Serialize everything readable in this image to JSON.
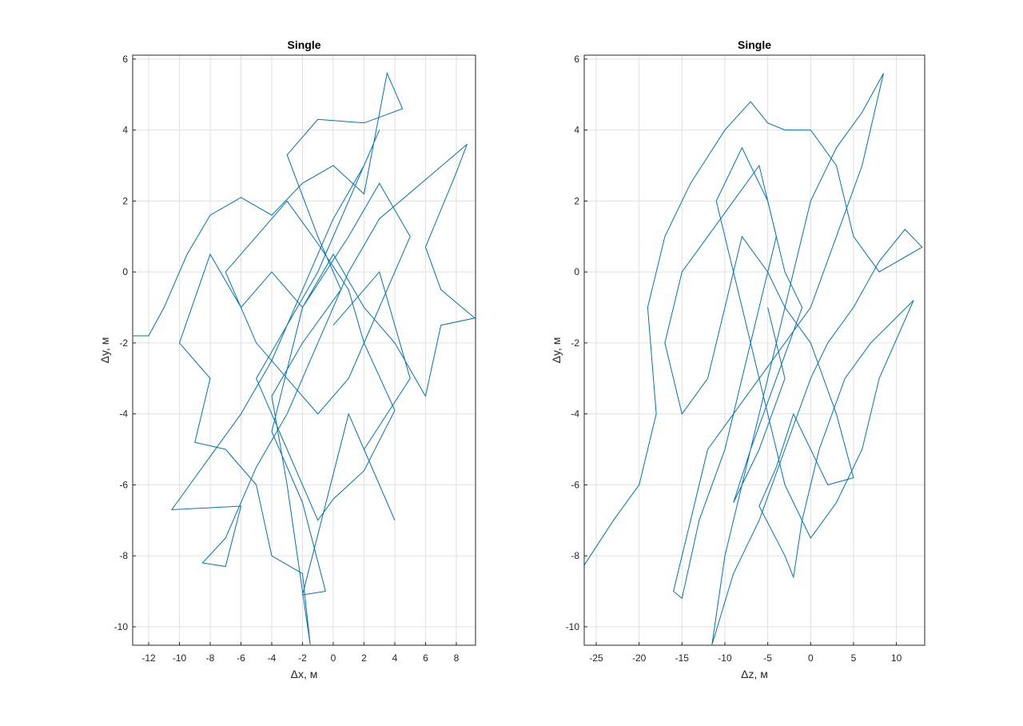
{
  "chart_data": [
    {
      "type": "line",
      "title": "Single",
      "xlabel": "Δx, м",
      "ylabel": "Δy, м",
      "xlim": [
        -13.04,
        9.25
      ],
      "ylim": [
        -10.52,
        6.11
      ],
      "xticks": [
        -12,
        -10,
        -8,
        -6,
        -4,
        -2,
        0,
        2,
        4,
        6,
        8
      ],
      "yticks": [
        -10,
        -8,
        -6,
        -4,
        -2,
        0,
        2,
        4,
        6
      ],
      "grid": true,
      "color": "#0072BD",
      "points": [
        [
          -13,
          -1.8
        ],
        [
          -12,
          -1.8
        ],
        [
          -11,
          -1
        ],
        [
          -9.5,
          0.5
        ],
        [
          -8,
          1.6
        ],
        [
          -6,
          2.1
        ],
        [
          -4,
          1.6
        ],
        [
          -2,
          2.5
        ],
        [
          0,
          3
        ],
        [
          2,
          2.2
        ],
        [
          3.5,
          5.6
        ],
        [
          4.5,
          4.6
        ],
        [
          2,
          4.2
        ],
        [
          -1,
          4.3
        ],
        [
          -3,
          3.3
        ],
        [
          -1,
          1
        ],
        [
          0.5,
          -0.5
        ],
        [
          -2,
          -2
        ],
        [
          -4,
          -3.5
        ],
        [
          -3,
          -6
        ],
        [
          -1.5,
          -10.5
        ],
        [
          -2,
          -8.5
        ],
        [
          -4,
          -8
        ],
        [
          -5,
          -6
        ],
        [
          -7,
          -5
        ],
        [
          -9,
          -4.8
        ],
        [
          -8,
          -3
        ],
        [
          -10,
          -2
        ],
        [
          -8,
          0.5
        ],
        [
          -6,
          -1
        ],
        [
          -4,
          0
        ],
        [
          -2,
          -1
        ],
        [
          0,
          0.5
        ],
        [
          2,
          -1
        ],
        [
          4,
          -2
        ],
        [
          6,
          -3.5
        ],
        [
          7,
          -1.5
        ],
        [
          9.2,
          -1.3
        ],
        [
          7,
          -0.5
        ],
        [
          6,
          0.7
        ],
        [
          8,
          2.8
        ],
        [
          8.7,
          3.6
        ],
        [
          6,
          2.6
        ],
        [
          3,
          1.5
        ],
        [
          1,
          0
        ],
        [
          -1,
          -2
        ],
        [
          -3,
          -4
        ],
        [
          -5,
          -5.5
        ],
        [
          -7,
          -7.5
        ],
        [
          -8.5,
          -8.2
        ],
        [
          -7,
          -8.3
        ],
        [
          -6,
          -6.6
        ],
        [
          -10.5,
          -6.7
        ],
        [
          -9,
          -5.8
        ],
        [
          -6,
          -4
        ],
        [
          -4,
          -2.5
        ],
        [
          -2,
          -0.5
        ],
        [
          0,
          1.5
        ],
        [
          2,
          3
        ],
        [
          3,
          4
        ],
        [
          1,
          2
        ],
        [
          -1,
          0
        ],
        [
          -3,
          -1.5
        ],
        [
          -5,
          -3
        ],
        [
          -3,
          -5
        ],
        [
          -1,
          -7
        ],
        [
          0,
          -6.4
        ],
        [
          2,
          -5.6
        ],
        [
          4,
          -3.9
        ],
        [
          2,
          -2
        ],
        [
          1,
          -0.5
        ],
        [
          -1,
          0.8
        ],
        [
          -3,
          2
        ],
        [
          -5,
          1
        ],
        [
          -7,
          0
        ],
        [
          -5,
          -2
        ],
        [
          -3,
          -3
        ],
        [
          -1,
          -4
        ],
        [
          1,
          -3
        ],
        [
          3,
          -1
        ],
        [
          5,
          1
        ],
        [
          3,
          2.5
        ],
        [
          1,
          1
        ],
        [
          -2,
          -1
        ],
        [
          -4,
          -4.5
        ],
        [
          -2,
          -6.5
        ],
        [
          -0.5,
          -9
        ],
        [
          -2,
          -9.1
        ],
        [
          1,
          -4
        ],
        [
          4,
          -7
        ],
        [
          2,
          -5
        ],
        [
          5,
          -3
        ],
        [
          3,
          0
        ],
        [
          0,
          -1.5
        ]
      ]
    },
    {
      "type": "line",
      "title": "Single",
      "xlabel": "Δz, м",
      "ylabel": "Δy, м",
      "xlim": [
        -26.4,
        13.3
      ],
      "ylim": [
        -10.52,
        6.11
      ],
      "xticks": [
        -25,
        -20,
        -15,
        -10,
        -5,
        0,
        5,
        10
      ],
      "yticks": [
        -10,
        -8,
        -6,
        -4,
        -2,
        0,
        2,
        4,
        6
      ],
      "grid": true,
      "color": "#0072BD",
      "points": [
        [
          -26.5,
          -8.3
        ],
        [
          -23,
          -7
        ],
        [
          -20,
          -6
        ],
        [
          -18,
          -4
        ],
        [
          -19,
          -1
        ],
        [
          -17,
          1
        ],
        [
          -14,
          2.5
        ],
        [
          -10,
          4
        ],
        [
          -7,
          4.8
        ],
        [
          -5,
          4.2
        ],
        [
          -3,
          4
        ],
        [
          0,
          4
        ],
        [
          3,
          3
        ],
        [
          5,
          1
        ],
        [
          8,
          0
        ],
        [
          13,
          0.7
        ],
        [
          11,
          1.2
        ],
        [
          8,
          0.3
        ],
        [
          5,
          -1
        ],
        [
          2,
          -2
        ],
        [
          0,
          -3
        ],
        [
          -3,
          -5
        ],
        [
          -6,
          -7
        ],
        [
          -9,
          -8.5
        ],
        [
          -11.5,
          -10.5
        ],
        [
          -10,
          -8
        ],
        [
          -8,
          -6
        ],
        [
          -6,
          -4
        ],
        [
          -4,
          -2
        ],
        [
          -2,
          0
        ],
        [
          0,
          2
        ],
        [
          3,
          3.5
        ],
        [
          6,
          4.5
        ],
        [
          8.5,
          5.6
        ],
        [
          6,
          3
        ],
        [
          3,
          1
        ],
        [
          0,
          -1
        ],
        [
          -3,
          -2
        ],
        [
          -6,
          -3
        ],
        [
          -9,
          -4
        ],
        [
          -12,
          -5
        ],
        [
          -14,
          -7
        ],
        [
          -16,
          -9
        ],
        [
          -15,
          -9.2
        ],
        [
          -13,
          -7
        ],
        [
          -10,
          -5
        ],
        [
          -8,
          -3
        ],
        [
          -6,
          -1
        ],
        [
          -4,
          1
        ],
        [
          -6,
          3
        ],
        [
          -9,
          2
        ],
        [
          -12,
          1
        ],
        [
          -15,
          0
        ],
        [
          -17,
          -2
        ],
        [
          -15,
          -4
        ],
        [
          -12,
          -3
        ],
        [
          -10,
          -1
        ],
        [
          -8,
          1
        ],
        [
          -5,
          0
        ],
        [
          -3,
          -1
        ],
        [
          0,
          -2
        ],
        [
          3,
          -4
        ],
        [
          5,
          -5.8
        ],
        [
          2,
          -6
        ],
        [
          0,
          -5
        ],
        [
          -2,
          -4
        ],
        [
          -4,
          -5.5
        ],
        [
          -6,
          -6.6
        ],
        [
          -3,
          -8
        ],
        [
          -2,
          -8.6
        ],
        [
          -1,
          -7
        ],
        [
          1,
          -5
        ],
        [
          4,
          -3
        ],
        [
          7,
          -2
        ],
        [
          12,
          -0.8
        ],
        [
          8,
          -3
        ],
        [
          6,
          -5
        ],
        [
          3,
          -6.5
        ],
        [
          0,
          -7.5
        ],
        [
          -3,
          -6
        ],
        [
          -5,
          -4
        ],
        [
          -7,
          -2
        ],
        [
          -9,
          0
        ],
        [
          -11,
          2
        ],
        [
          -8,
          3.5
        ],
        [
          -5,
          2
        ],
        [
          -3,
          0
        ],
        [
          -1,
          -1
        ],
        [
          -4,
          -3
        ],
        [
          -7,
          -5
        ],
        [
          -9,
          -6.5
        ],
        [
          -6,
          -5
        ],
        [
          -3,
          -3
        ],
        [
          -5,
          -1
        ]
      ]
    }
  ]
}
